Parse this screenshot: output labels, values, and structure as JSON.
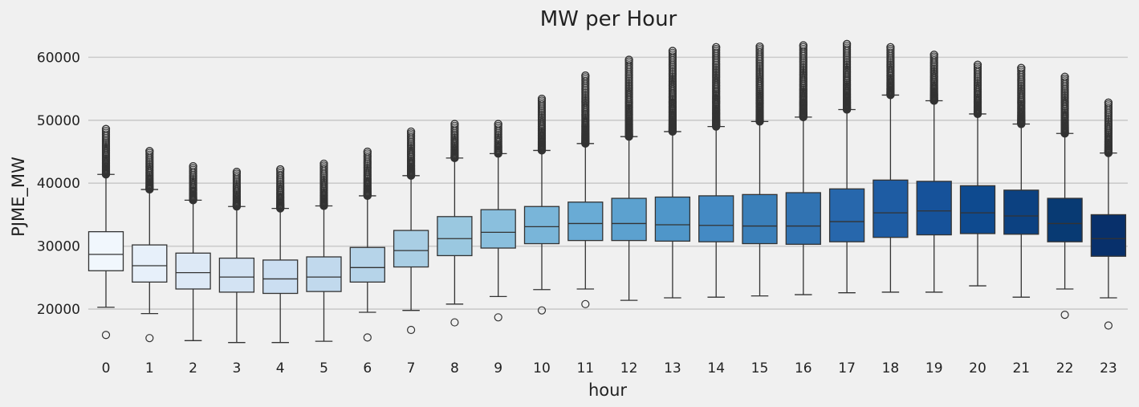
{
  "chart_data": {
    "type": "box",
    "title": "MW per Hour",
    "xlabel": "hour",
    "ylabel": "PJME_MW",
    "ylim": [
      13000,
      64000
    ],
    "yticks": [
      20000,
      30000,
      40000,
      50000,
      60000
    ],
    "grid": "horizontal",
    "palette": "Blues",
    "categories": [
      "0",
      "1",
      "2",
      "3",
      "4",
      "5",
      "6",
      "7",
      "8",
      "9",
      "10",
      "11",
      "12",
      "13",
      "14",
      "15",
      "16",
      "17",
      "18",
      "19",
      "20",
      "21",
      "22",
      "23"
    ],
    "colors": [
      "#f1f7fd",
      "#e7f0fa",
      "#dde9f6",
      "#d3e3f3",
      "#cbdef1",
      "#c1d9ed",
      "#b6d4e9",
      "#a9cee4",
      "#9ac8e0",
      "#8abfdd",
      "#79b5d9",
      "#69abd5",
      "#5ca1cf",
      "#4f96c9",
      "#448ac4",
      "#3a7fb9",
      "#3173b2",
      "#2767ac",
      "#1e5ca3",
      "#16529a",
      "#0e4a8f",
      "#0c4181",
      "#083a73",
      "#08306b"
    ],
    "boxes": [
      {
        "whislo": 20300,
        "q1": 26100,
        "med": 28700,
        "q3": 32300,
        "whishi": 41400,
        "low_outliers": [
          15900
        ],
        "high_range": [
          41400,
          48600
        ]
      },
      {
        "whislo": 19300,
        "q1": 24300,
        "med": 26900,
        "q3": 30200,
        "whishi": 39000,
        "low_outliers": [
          15400
        ],
        "high_range": [
          39000,
          45100
        ]
      },
      {
        "whislo": 15000,
        "q1": 23200,
        "med": 25800,
        "q3": 28900,
        "whishi": 37300,
        "low_outliers": [],
        "high_range": [
          37300,
          42700
        ]
      },
      {
        "whislo": 14700,
        "q1": 22700,
        "med": 25100,
        "q3": 28100,
        "whishi": 36300,
        "low_outliers": [],
        "high_range": [
          36300,
          41800
        ]
      },
      {
        "whislo": 14700,
        "q1": 22500,
        "med": 24800,
        "q3": 27800,
        "whishi": 36000,
        "low_outliers": [],
        "high_range": [
          36000,
          42200
        ]
      },
      {
        "whislo": 14900,
        "q1": 22800,
        "med": 25100,
        "q3": 28300,
        "whishi": 36400,
        "low_outliers": [],
        "high_range": [
          36400,
          43100
        ]
      },
      {
        "whislo": 19500,
        "q1": 24300,
        "med": 26600,
        "q3": 29800,
        "whishi": 38000,
        "low_outliers": [
          15500
        ],
        "high_range": [
          38000,
          45000
        ]
      },
      {
        "whislo": 19800,
        "q1": 26700,
        "med": 29300,
        "q3": 32500,
        "whishi": 41200,
        "low_outliers": [
          16700
        ],
        "high_range": [
          41200,
          48200
        ]
      },
      {
        "whislo": 20800,
        "q1": 28500,
        "med": 31200,
        "q3": 34700,
        "whishi": 44000,
        "low_outliers": [
          17900
        ],
        "high_range": [
          44000,
          49400
        ]
      },
      {
        "whislo": 22000,
        "q1": 29700,
        "med": 32200,
        "q3": 35800,
        "whishi": 44700,
        "low_outliers": [
          18700
        ],
        "high_range": [
          44700,
          49400
        ]
      },
      {
        "whislo": 23100,
        "q1": 30400,
        "med": 33100,
        "q3": 36300,
        "whishi": 45200,
        "low_outliers": [
          19800
        ],
        "high_range": [
          45200,
          53400
        ]
      },
      {
        "whislo": 23200,
        "q1": 30900,
        "med": 33600,
        "q3": 37000,
        "whishi": 46300,
        "low_outliers": [
          20800
        ],
        "high_range": [
          46300,
          57100
        ]
      },
      {
        "whislo": 21400,
        "q1": 30900,
        "med": 33600,
        "q3": 37600,
        "whishi": 47400,
        "low_outliers": [],
        "high_range": [
          47400,
          59600
        ]
      },
      {
        "whislo": 21800,
        "q1": 30800,
        "med": 33400,
        "q3": 37800,
        "whishi": 48200,
        "low_outliers": [],
        "high_range": [
          48200,
          61000
        ]
      },
      {
        "whislo": 21900,
        "q1": 30700,
        "med": 33300,
        "q3": 38000,
        "whishi": 49000,
        "low_outliers": [],
        "high_range": [
          49000,
          61600
        ]
      },
      {
        "whislo": 22100,
        "q1": 30400,
        "med": 33200,
        "q3": 38200,
        "whishi": 49800,
        "low_outliers": [],
        "high_range": [
          49800,
          61700
        ]
      },
      {
        "whislo": 22300,
        "q1": 30300,
        "med": 33200,
        "q3": 38500,
        "whishi": 50500,
        "low_outliers": [],
        "high_range": [
          50500,
          61900
        ]
      },
      {
        "whislo": 22600,
        "q1": 30700,
        "med": 33900,
        "q3": 39100,
        "whishi": 51700,
        "low_outliers": [],
        "high_range": [
          51700,
          62100
        ]
      },
      {
        "whislo": 22700,
        "q1": 31400,
        "med": 35300,
        "q3": 40500,
        "whishi": 54000,
        "low_outliers": [],
        "high_range": [
          54000,
          61600
        ]
      },
      {
        "whislo": 22700,
        "q1": 31800,
        "med": 35600,
        "q3": 40300,
        "whishi": 53100,
        "low_outliers": [],
        "high_range": [
          53100,
          60400
        ]
      },
      {
        "whislo": 23700,
        "q1": 32000,
        "med": 35300,
        "q3": 39600,
        "whishi": 51000,
        "low_outliers": [],
        "high_range": [
          51000,
          58800
        ]
      },
      {
        "whislo": 21900,
        "q1": 31900,
        "med": 34800,
        "q3": 38900,
        "whishi": 49400,
        "low_outliers": [],
        "high_range": [
          49400,
          58300
        ]
      },
      {
        "whislo": 23200,
        "q1": 30700,
        "med": 33600,
        "q3": 37600,
        "whishi": 47900,
        "low_outliers": [
          19100
        ],
        "high_range": [
          47900,
          56900
        ]
      },
      {
        "whislo": 21800,
        "q1": 28400,
        "med": 31200,
        "q3": 35000,
        "whishi": 44800,
        "low_outliers": [
          17400
        ],
        "high_range": [
          44800,
          52800
        ]
      }
    ]
  }
}
